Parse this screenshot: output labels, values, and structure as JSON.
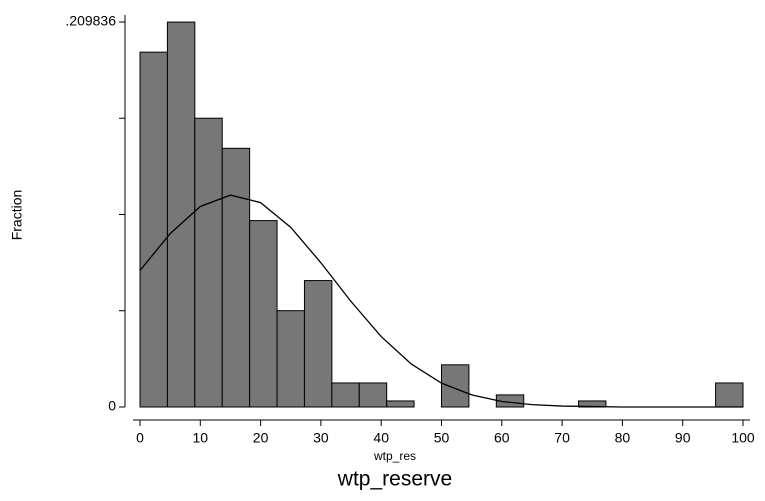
{
  "chart_data": {
    "type": "histogram",
    "bins": [
      0,
      4.5455,
      9.0909,
      13.6364,
      18.1818,
      22.7273,
      27.2727,
      31.8182,
      36.3636,
      40.9091,
      45.4545,
      50,
      54.5455,
      59.0909,
      63.6364,
      68.1818,
      72.7273,
      77.2727,
      81.8182,
      86.3636,
      90.9091,
      95.4545,
      100
    ],
    "values": [
      0.1934,
      0.2098,
      0.1574,
      0.141,
      0.1016,
      0.0525,
      0.0689,
      0.0131,
      0.0131,
      0.0033,
      0,
      0.023,
      0,
      0.0066,
      0,
      0,
      0.0033,
      0,
      0,
      0,
      0,
      0.0131
    ],
    "color": "#777777",
    "curve": {
      "x": [
        0,
        5,
        10,
        15,
        20,
        25,
        30,
        35,
        40,
        45,
        50,
        55,
        60,
        65,
        70,
        80,
        90,
        100
      ],
      "values": [
        0.0744,
        0.0945,
        0.1093,
        0.1155,
        0.1114,
        0.0979,
        0.0786,
        0.0575,
        0.0384,
        0.0234,
        0.013,
        0.0066,
        0.003,
        0.0013,
        0.0005,
        0,
        0,
        0
      ]
    },
    "xlim": [
      0,
      100
    ],
    "xticks": [
      0,
      10,
      20,
      30,
      40,
      50,
      60,
      70,
      80,
      90,
      100
    ],
    "ylim": [
      0,
      0.209836
    ],
    "yticks": [
      0,
      {
        "value": 0.209836,
        "label": ".209836"
      }
    ],
    "yminor_ticks": [
      0.052459,
      0.104918,
      0.157377
    ],
    "xlabel": "wtp_res",
    "title": "wtp_reserve",
    "ylabel": "Fraction"
  }
}
